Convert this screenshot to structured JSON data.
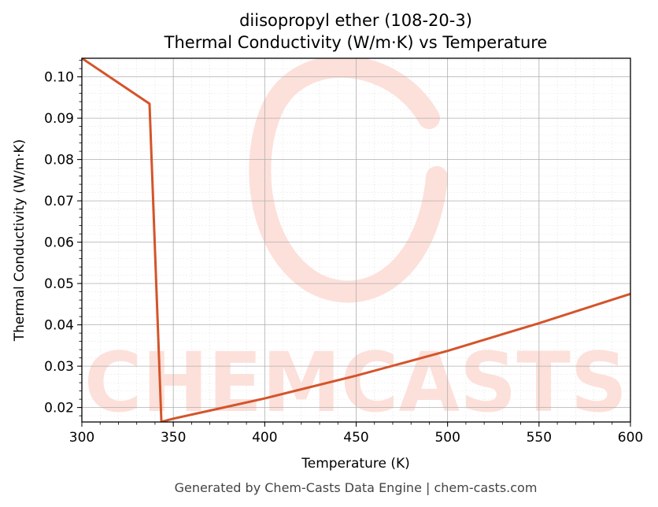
{
  "chart_data": {
    "type": "line",
    "title": "diisopropyl ether (108-20-3)",
    "subtitle": "Thermal Conductivity (W/m·K) vs Temperature",
    "xlabel": "Temperature (K)",
    "ylabel": "Thermal Conductivity (W/m·K)",
    "xlim": [
      300,
      600
    ],
    "ylim": [
      0.0165,
      0.1045
    ],
    "xticks": [
      300,
      350,
      400,
      450,
      500,
      550,
      600
    ],
    "yticks": [
      0.02,
      0.03,
      0.04,
      0.05,
      0.06,
      0.07,
      0.08,
      0.09,
      0.1
    ],
    "ytick_labels": [
      "0.02",
      "0.03",
      "0.04",
      "0.05",
      "0.06",
      "0.07",
      "0.08",
      "0.09",
      "0.10"
    ],
    "grid": true,
    "series": [
      {
        "color": "#d4542a",
        "x": [
          300,
          337,
          343.5,
          344,
          350,
          400,
          450,
          500,
          550,
          600
        ],
        "y": [
          0.1045,
          0.0935,
          0.0165,
          0.0166,
          0.0173,
          0.0222,
          0.0277,
          0.0337,
          0.0404,
          0.0475
        ]
      }
    ]
  },
  "watermark": {
    "text": "CHEMCASTS",
    "color": "#fde0da"
  },
  "footer": "Generated by Chem-Casts Data Engine | chem-casts.com"
}
